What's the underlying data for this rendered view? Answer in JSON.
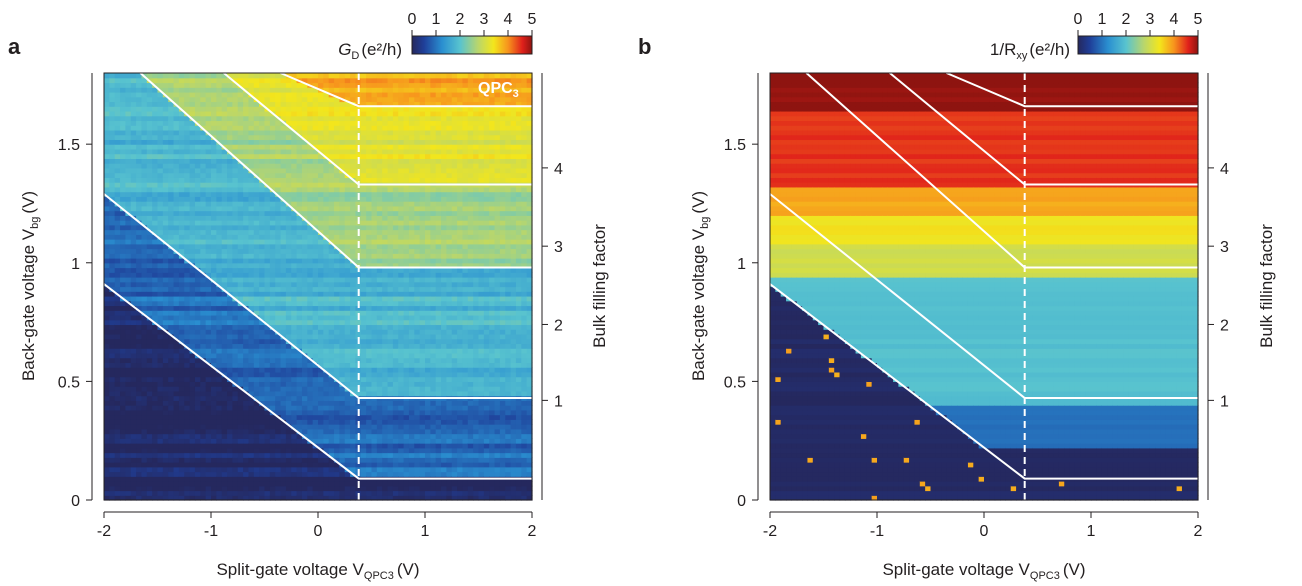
{
  "chart_data": [
    {
      "type": "heatmap",
      "panel_label": "a",
      "xlabel": "Split-gate voltage V",
      "xlabel_sub": "QPC3",
      "xlabel_unit": "(V)",
      "ylabel": "Back-gate voltage V",
      "ylabel_sub": "bg",
      "ylabel_unit": "(V)",
      "y2label": "Bulk filling factor",
      "xlim": [
        -2,
        2
      ],
      "ylim": [
        0,
        1.8
      ],
      "x_ticks": [
        -2,
        -1,
        0,
        1,
        2
      ],
      "x_tick_labels": [
        "-2",
        "-1",
        "0",
        "1",
        "2"
      ],
      "y_ticks": [
        0,
        0.5,
        1,
        1.5
      ],
      "y_tick_labels": [
        "0",
        "0.5",
        "1",
        "1.5"
      ],
      "y2_ticks": [
        0.42,
        0.74,
        1.07,
        1.4
      ],
      "y2_tick_labels": [
        "1",
        "2",
        "3",
        "4"
      ],
      "colorbar": {
        "label": "G",
        "label_sub": "D",
        "label_unit": "(e²/h)",
        "ticks": [
          0,
          1,
          2,
          3,
          4,
          5
        ],
        "tick_labels": [
          "0",
          "1",
          "2",
          "3",
          "4",
          "5"
        ],
        "range": [
          0,
          5
        ]
      },
      "annotation": "QPC",
      "annotation_sub": "3",
      "dashed_line_x": 0.38,
      "boundaries": [
        {
          "points": [
            [
              -2,
              0.91
            ],
            [
              0.38,
              0.09
            ],
            [
              2,
              0.09
            ]
          ]
        },
        {
          "points": [
            [
              -2,
              1.29
            ],
            [
              0.38,
              0.43
            ],
            [
              2,
              0.43
            ]
          ]
        },
        {
          "points": [
            [
              -1.66,
              1.8
            ],
            [
              0.38,
              0.98
            ],
            [
              2,
              0.98
            ]
          ]
        },
        {
          "points": [
            [
              -0.88,
              1.8
            ],
            [
              0.38,
              1.33
            ],
            [
              2,
              1.33
            ]
          ]
        },
        {
          "points": [
            [
              -0.35,
              1.8
            ],
            [
              0.38,
              1.66
            ],
            [
              2,
              1.66
            ]
          ]
        }
      ],
      "region_values": [
        0.05,
        0.9,
        1.8,
        2.6,
        3.2,
        3.8
      ]
    },
    {
      "type": "heatmap",
      "panel_label": "b",
      "xlabel": "Split-gate voltage V",
      "xlabel_sub": "QPC3",
      "xlabel_unit": "(V)",
      "ylabel": "Back-gate voltage V",
      "ylabel_sub": "bg",
      "ylabel_unit": "(V)",
      "y2label": "Bulk filling factor",
      "xlim": [
        -2,
        2
      ],
      "ylim": [
        0,
        1.8
      ],
      "x_ticks": [
        -2,
        -1,
        0,
        1,
        2
      ],
      "x_tick_labels": [
        "-2",
        "-1",
        "0",
        "1",
        "2"
      ],
      "y_ticks": [
        0,
        0.5,
        1,
        1.5
      ],
      "y_tick_labels": [
        "0",
        "0.5",
        "1",
        "1.5"
      ],
      "y2_ticks": [
        0.42,
        0.74,
        1.07,
        1.4
      ],
      "y2_tick_labels": [
        "1",
        "2",
        "3",
        "4"
      ],
      "colorbar": {
        "label": "1/R",
        "label_sub": "xy",
        "label_unit": "(e²/h)",
        "ticks": [
          0,
          1,
          2,
          3,
          4,
          5
        ],
        "tick_labels": [
          "0",
          "1",
          "2",
          "3",
          "4",
          "5"
        ],
        "range": [
          0,
          5
        ]
      },
      "dashed_line_x": 0.38,
      "boundaries": [
        {
          "points": [
            [
              -2,
              0.91
            ],
            [
              0.38,
              0.09
            ],
            [
              2,
              0.09
            ]
          ]
        },
        {
          "points": [
            [
              -2,
              1.29
            ],
            [
              0.38,
              0.43
            ],
            [
              2,
              0.43
            ]
          ]
        },
        {
          "points": [
            [
              -1.66,
              1.8
            ],
            [
              0.38,
              0.98
            ],
            [
              2,
              0.98
            ]
          ]
        },
        {
          "points": [
            [
              -0.88,
              1.8
            ],
            [
              0.38,
              1.33
            ],
            [
              2,
              1.33
            ]
          ]
        },
        {
          "points": [
            [
              -0.35,
              1.8
            ],
            [
              0.38,
              1.66
            ],
            [
              2,
              1.66
            ]
          ]
        }
      ],
      "band_values": [
        {
          "y": [
            0.0,
            0.22
          ],
          "value": 0.05
        },
        {
          "y": [
            0.22,
            0.41
          ],
          "value": 0.95
        },
        {
          "y": [
            0.41,
            0.95
          ],
          "value": 1.95
        },
        {
          "y": [
            0.95,
            1.08
          ],
          "value": 3.0
        },
        {
          "y": [
            1.08,
            1.2
          ],
          "value": 3.4
        },
        {
          "y": [
            1.2,
            1.33
          ],
          "value": 3.85
        },
        {
          "y": [
            1.33,
            1.65
          ],
          "value": 4.5
        },
        {
          "y": [
            1.65,
            1.8
          ],
          "value": 5.0
        }
      ]
    }
  ]
}
